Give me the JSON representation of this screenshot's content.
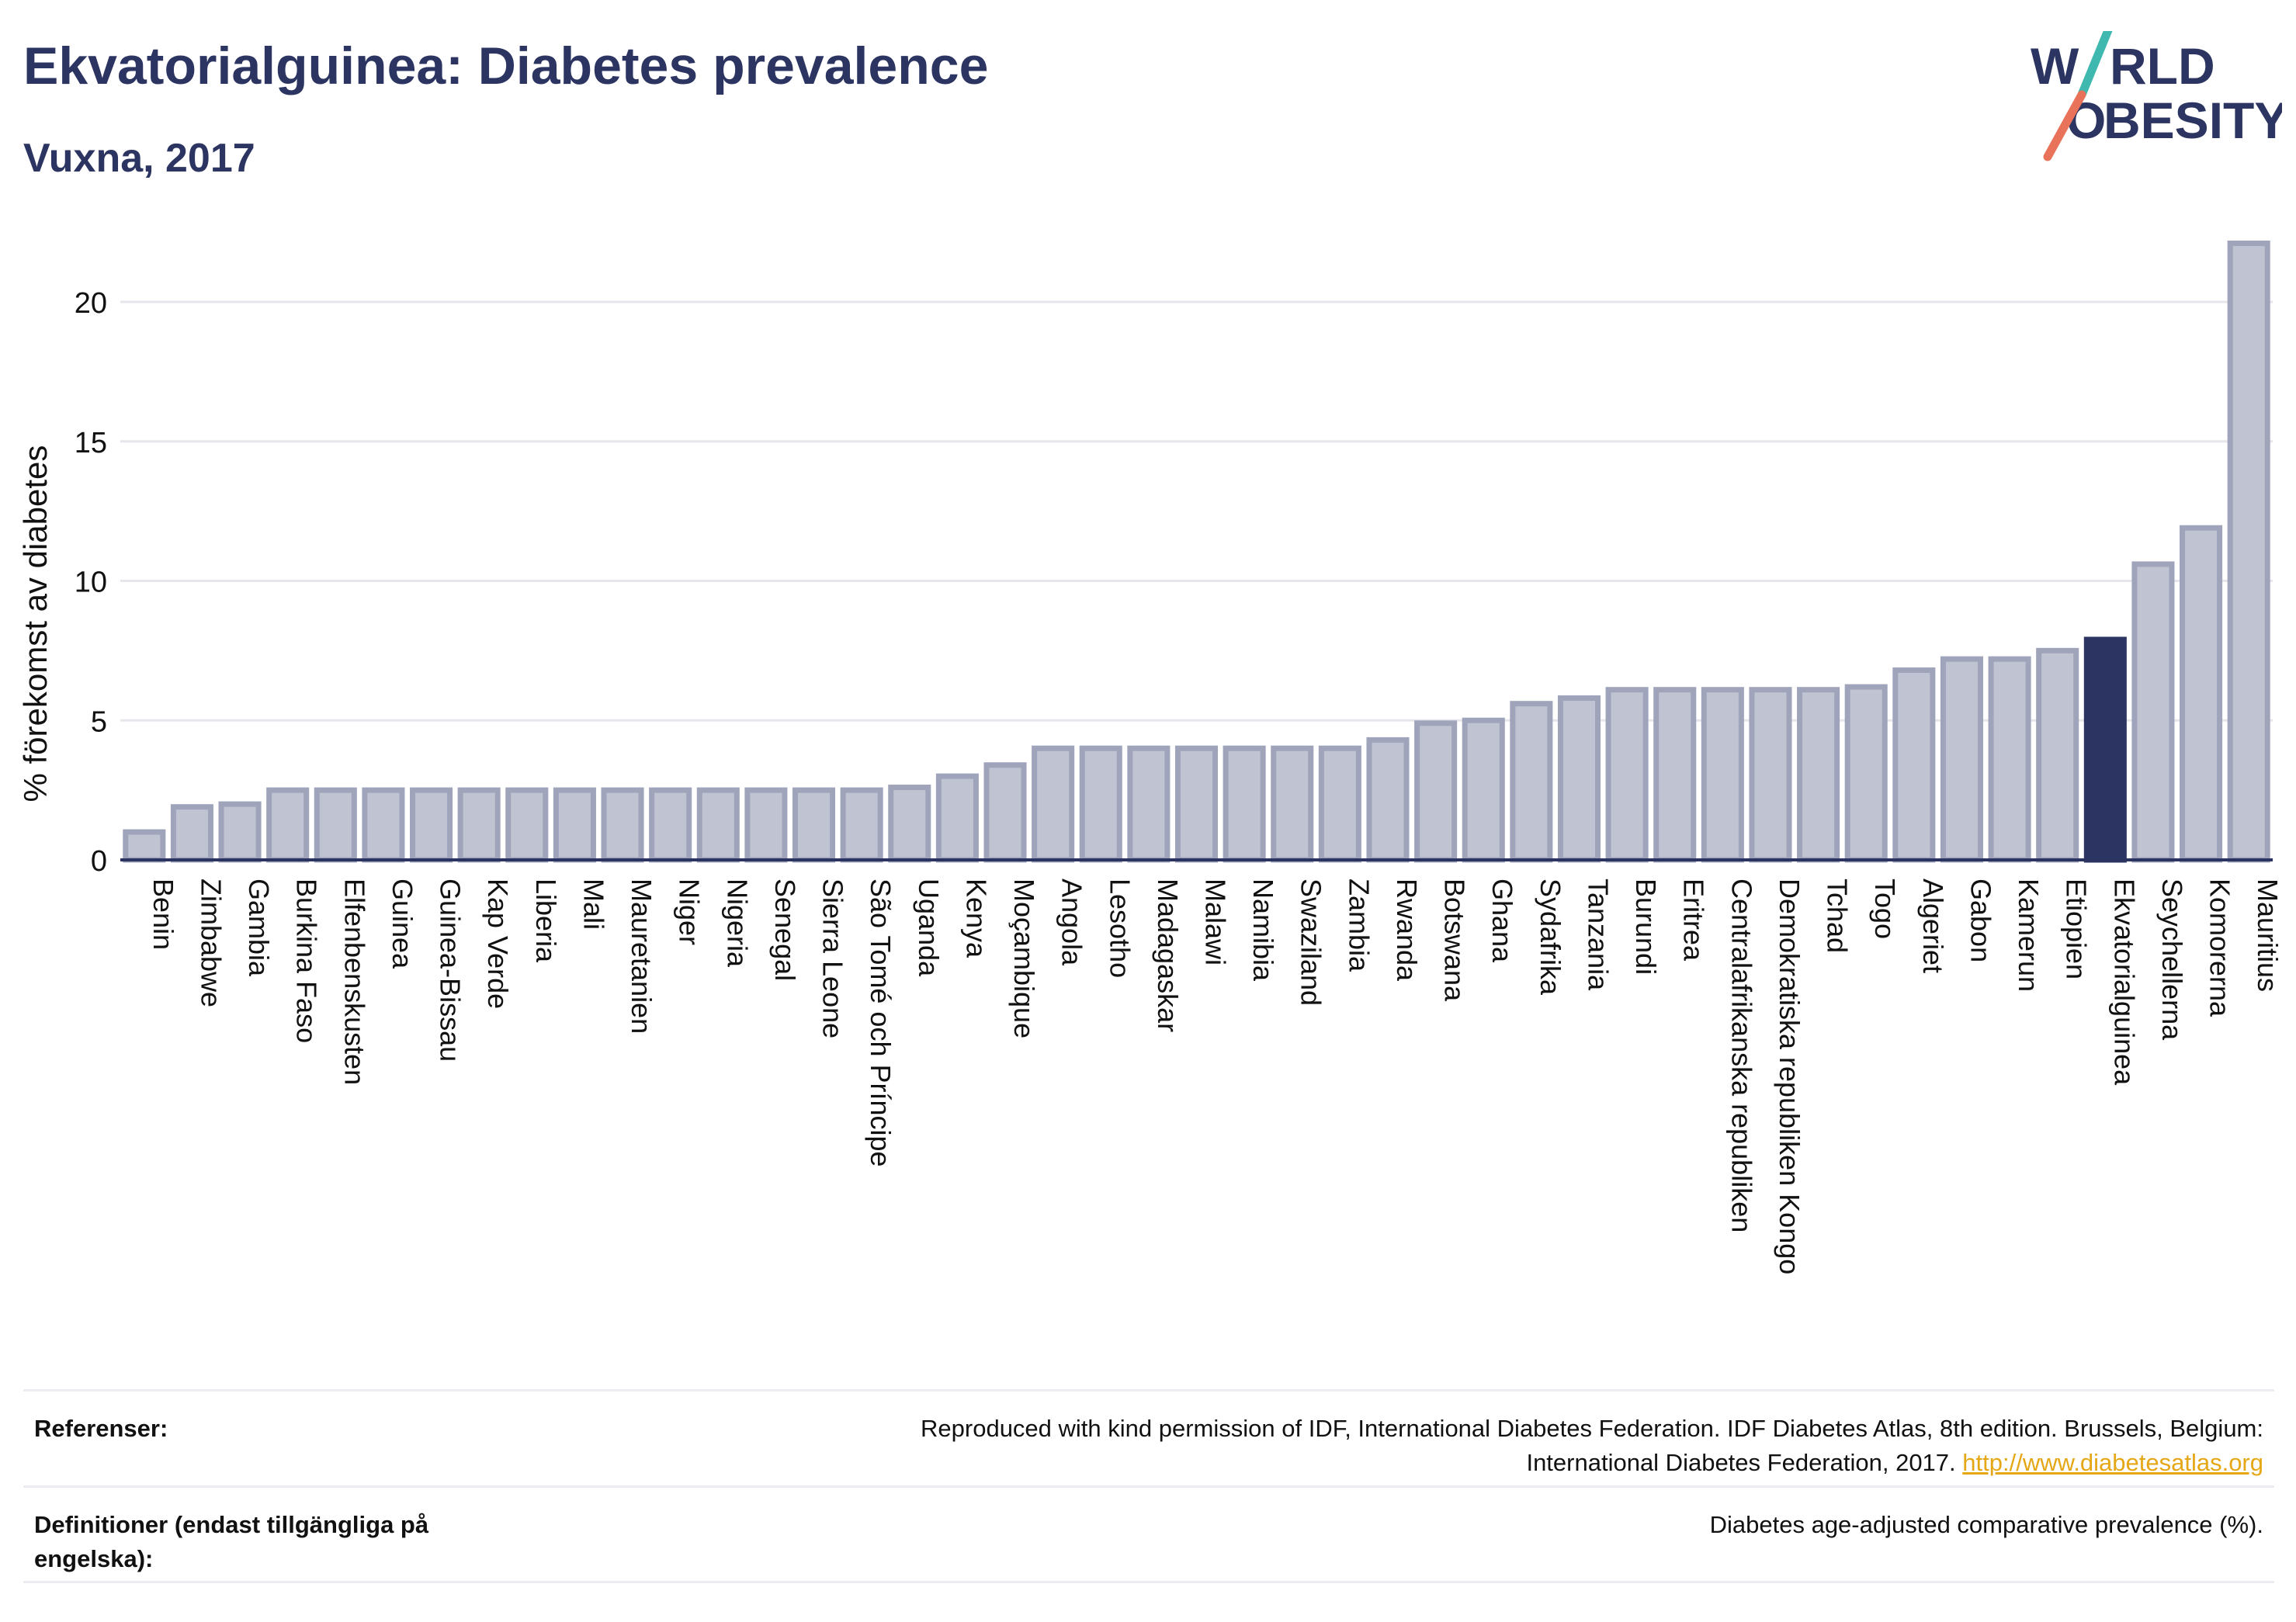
{
  "header": {
    "title": "Ekvatorialguinea: Diabetes prevalence",
    "subtitle": "Vuxna, 2017"
  },
  "logo": {
    "line1_a": "W",
    "line1_b": "RLD",
    "line2_a": "O",
    "line2_b": "BESITY",
    "text_color": "#2c3561",
    "slash_top_color": "#3fb8b0",
    "slash_bottom_color": "#e8735a"
  },
  "chart_data": {
    "type": "bar",
    "ylabel": "% förekomst av diabetes",
    "xlabel": "",
    "ylim": [
      0,
      22.5
    ],
    "yticks": [
      0,
      5,
      10,
      15,
      20
    ],
    "grid": true,
    "categories": [
      "Benin",
      "Zimbabwe",
      "Gambia",
      "Burkina Faso",
      "Elfenbenskusten",
      "Guinea",
      "Guinea-Bissau",
      "Kap Verde",
      "Liberia",
      "Mali",
      "Mauretanien",
      "Niger",
      "Nigeria",
      "Senegal",
      "Sierra Leone",
      "São Tomé och Príncipe",
      "Uganda",
      "Kenya",
      "Moçambique",
      "Angola",
      "Lesotho",
      "Madagaskar",
      "Malawi",
      "Namibia",
      "Swaziland",
      "Zambia",
      "Rwanda",
      "Botswana",
      "Ghana",
      "Sydafrika",
      "Tanzania",
      "Burundi",
      "Eritrea",
      "Centralafrikanska republiken",
      "Demokratiska republiken Kongo",
      "Tchad",
      "Togo",
      "Algeriet",
      "Gabon",
      "Kamerun",
      "Etiopien",
      "Ekvatorialguinea",
      "Seychellerna",
      "Komorerna",
      "Mauritius"
    ],
    "values": [
      1.0,
      1.9,
      2.0,
      2.5,
      2.5,
      2.5,
      2.5,
      2.5,
      2.5,
      2.5,
      2.5,
      2.5,
      2.5,
      2.5,
      2.5,
      2.5,
      2.6,
      3.0,
      3.4,
      4.0,
      4.0,
      4.0,
      4.0,
      4.0,
      4.0,
      4.0,
      4.3,
      4.9,
      5.0,
      5.6,
      5.8,
      6.1,
      6.1,
      6.1,
      6.1,
      6.1,
      6.2,
      6.8,
      7.2,
      7.2,
      7.5,
      7.9,
      10.6,
      11.9,
      22.1
    ],
    "highlight": "Ekvatorialguinea",
    "colors": {
      "bar": "#c0c3d1",
      "bar_stroke": "#9fa4bb",
      "highlight": "#2c3561",
      "grid": "#e6e6ec",
      "axis": "#2c3561"
    }
  },
  "footer": {
    "references_label": "Referenser:",
    "references_text_1": "Reproduced with kind permission of IDF, International Diabetes Federation. IDF Diabetes Atlas, 8th edition. Brussels, Belgium:",
    "references_text_2": "International Diabetes Federation, 2017.",
    "references_link": "http://www.diabetesatlas.org",
    "definitions_label": "Definitioner (endast tillgängliga på engelska):",
    "definitions_text": "Diabetes age-adjusted comparative prevalence (%)."
  }
}
